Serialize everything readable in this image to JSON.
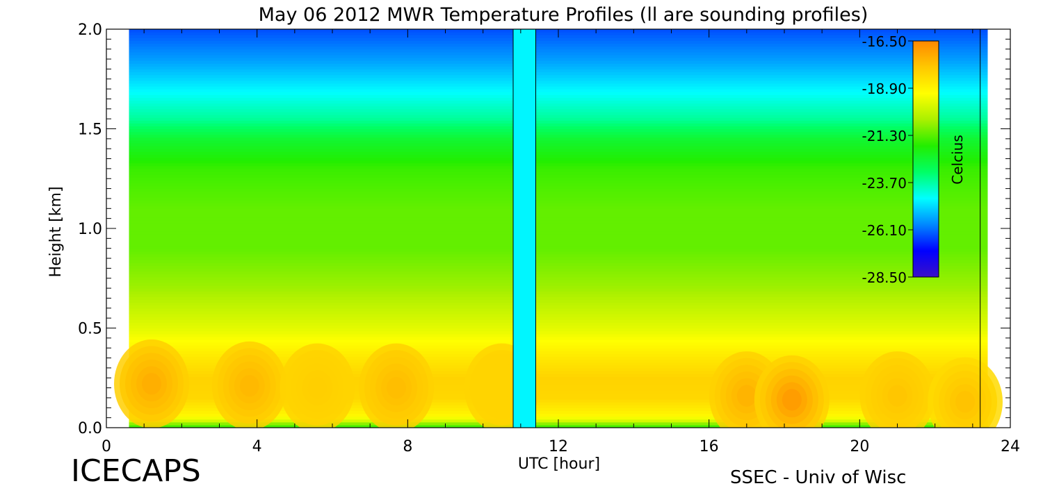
{
  "chart_data": {
    "type": "heatmap",
    "title": "May 06 2012 MWR Temperature Profiles (ll are sounding profiles)",
    "xlabel": "UTC [hour]",
    "ylabel": "Height [km]",
    "xlim": [
      0,
      24
    ],
    "ylim": [
      0,
      2.0
    ],
    "x_ticks": [
      "0",
      "4",
      "8",
      "12",
      "16",
      "20",
      "24"
    ],
    "y_ticks": [
      "0.0",
      "0.5",
      "1.0",
      "1.5",
      "2.0"
    ],
    "data_x_range": [
      0.6,
      23.4
    ],
    "missing_x_range": [
      10.8,
      11.4
    ],
    "sounding_hours": [
      10.8,
      11.4,
      23.2
    ],
    "z_hot_spots": [
      {
        "x": 1.2,
        "y": 0.22,
        "value": -17.3
      },
      {
        "x": 3.8,
        "y": 0.21,
        "value": -17.5
      },
      {
        "x": 5.6,
        "y": 0.2,
        "value": -18.0
      },
      {
        "x": 7.7,
        "y": 0.2,
        "value": -17.6
      },
      {
        "x": 10.5,
        "y": 0.2,
        "value": -18.1
      },
      {
        "x": 17.0,
        "y": 0.16,
        "value": -17.4
      },
      {
        "x": 18.2,
        "y": 0.14,
        "value": -16.9
      },
      {
        "x": 21.0,
        "y": 0.16,
        "value": -17.8
      },
      {
        "x": 22.8,
        "y": 0.13,
        "value": -17.7
      }
    ],
    "colorbar": {
      "label": "Celcius",
      "ticks": [
        "-16.50",
        "-18.90",
        "-21.30",
        "-23.70",
        "-26.10",
        "-28.50"
      ],
      "zlim": [
        -28.5,
        -16.5
      ],
      "colors": [
        "#3b10c8",
        "#0000ff",
        "#0088ff",
        "#00ffff",
        "#00ff66",
        "#22ee00",
        "#aaf000",
        "#ffff00",
        "#ffc800",
        "#ff8800"
      ]
    }
  },
  "footer": {
    "left_label": "ICECAPS",
    "right_label": "SSEC - Univ of Wisc"
  }
}
